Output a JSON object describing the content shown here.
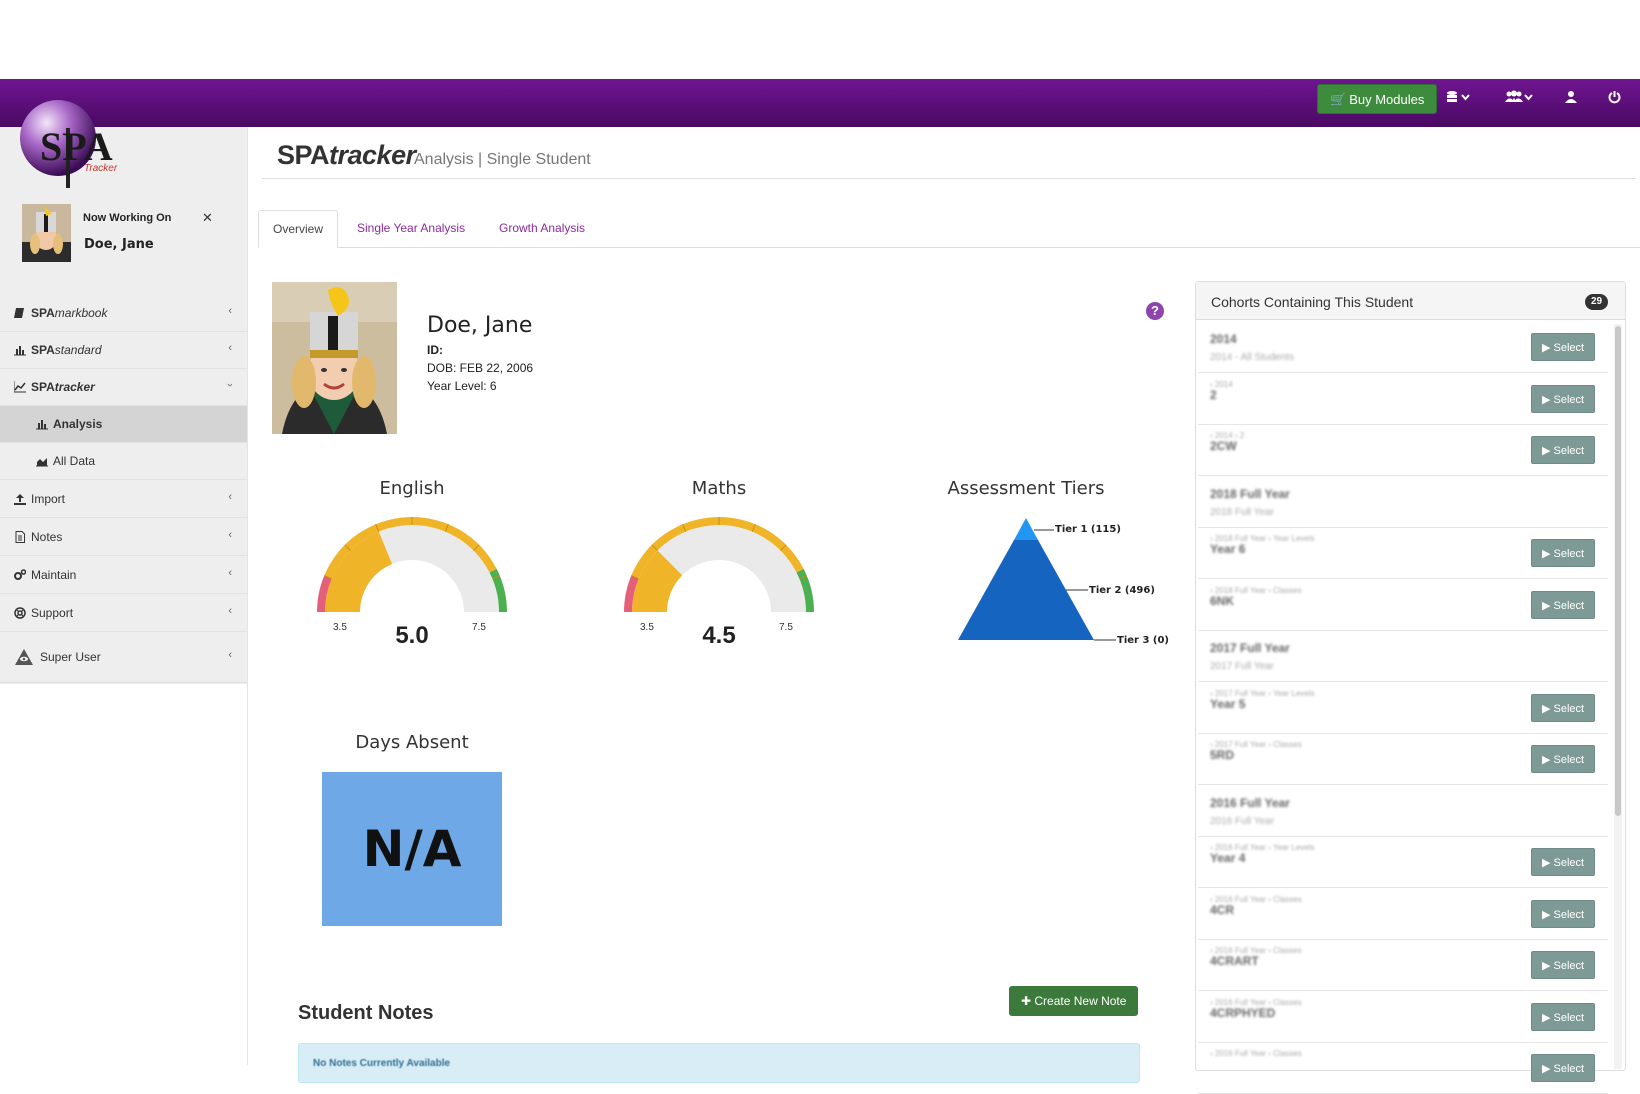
{
  "topbar": {
    "buy_label": "Buy Modules",
    "icons": [
      "database-icon",
      "group-icon",
      "user-icon",
      "power-icon"
    ]
  },
  "logo": {
    "text": "SPA",
    "sub": "Tracker"
  },
  "working": {
    "label": "Now Working On",
    "name": "Doe, Jane",
    "close": "✕"
  },
  "nav": {
    "markbook": {
      "prefix": "SPA",
      "suffix": "markbook"
    },
    "standard": {
      "prefix": "SPA",
      "suffix": "standard"
    },
    "tracker": {
      "prefix": "SPA",
      "suffix": "tracker"
    },
    "analysis": "Analysis",
    "alldata": "All Data",
    "import": "Import",
    "notes": "Notes",
    "maintain": "Maintain",
    "support": "Support",
    "superuser": "Super User"
  },
  "header": {
    "brand_a": "SPA",
    "brand_b": "tracker",
    "subtitle": "Analysis | Single Student"
  },
  "tabs": {
    "overview": "Overview",
    "single": "Single Year Analysis",
    "growth": "Growth Analysis"
  },
  "student": {
    "name": "Doe, Jane",
    "id_label": "ID:",
    "dob": "DOB: FEB 22, 2006",
    "year_level": "Year Level: 6"
  },
  "gauges": {
    "english": {
      "title": "English",
      "value": "5.0",
      "numeric": 5.0,
      "min": "3.5",
      "max": "7.5"
    },
    "maths": {
      "title": "Maths",
      "value": "4.5",
      "numeric": 4.5,
      "min": "3.5",
      "max": "7.5"
    }
  },
  "tiers": {
    "title": "Assessment Tiers",
    "tier1": "Tier 1 (115)",
    "tier2": "Tier 2 (496)",
    "tier3": "Tier 3 (0)"
  },
  "absent": {
    "title": "Days Absent",
    "value": "N/A"
  },
  "notes": {
    "title": "Student Notes",
    "create": "Create New Note",
    "empty": "No Notes Currently Available"
  },
  "cohorts": {
    "title": "Cohorts Containing This Student",
    "count": "29",
    "select_label": "Select",
    "rows": [
      {
        "small": "",
        "name": "2014",
        "sub": "2014 - All Students",
        "select": true
      },
      {
        "small": "› 2014",
        "name": "2",
        "sub": "",
        "select": true
      },
      {
        "small": "› 2014 › 2",
        "name": "2CW",
        "sub": "",
        "select": true
      },
      {
        "small": "",
        "name": "2018 Full Year",
        "sub": "2018 Full Year",
        "select": false
      },
      {
        "small": "› 2018 Full Year › Year Levels",
        "name": "Year 6",
        "sub": "",
        "select": true
      },
      {
        "small": "› 2018 Full Year › Classes",
        "name": "6NK",
        "sub": "",
        "select": true
      },
      {
        "small": "",
        "name": "2017 Full Year",
        "sub": "2017 Full Year",
        "select": false
      },
      {
        "small": "› 2017 Full Year › Year Levels",
        "name": "Year 5",
        "sub": "",
        "select": true
      },
      {
        "small": "› 2017 Full Year › Classes",
        "name": "5RD",
        "sub": "",
        "select": true
      },
      {
        "small": "",
        "name": "2016 Full Year",
        "sub": "2016 Full Year",
        "select": false
      },
      {
        "small": "› 2016 Full Year › Year Levels",
        "name": "Year 4",
        "sub": "",
        "select": true
      },
      {
        "small": "› 2016 Full Year › Classes",
        "name": "4CR",
        "sub": "",
        "select": true
      },
      {
        "small": "› 2016 Full Year › Classes",
        "name": "4CRART",
        "sub": "",
        "select": true
      },
      {
        "small": "› 2016 Full Year › Classes",
        "name": "4CRPHYED",
        "sub": "",
        "select": true
      },
      {
        "small": "› 2016 Full Year › Classes",
        "name": "",
        "sub": "",
        "select": true
      }
    ]
  },
  "colors": {
    "topbar": "#5e1080",
    "buy": "#3d8b3d",
    "gauge_red": "#e4607a",
    "gauge_yellow": "#f0b429",
    "gauge_green": "#4caf50",
    "gauge_bg": "#eaeaea",
    "tier_main": "#1565c0",
    "tier_top": "#2196f3",
    "absent_bg": "#6fa8e6",
    "select_btn": "#7e9a97"
  }
}
